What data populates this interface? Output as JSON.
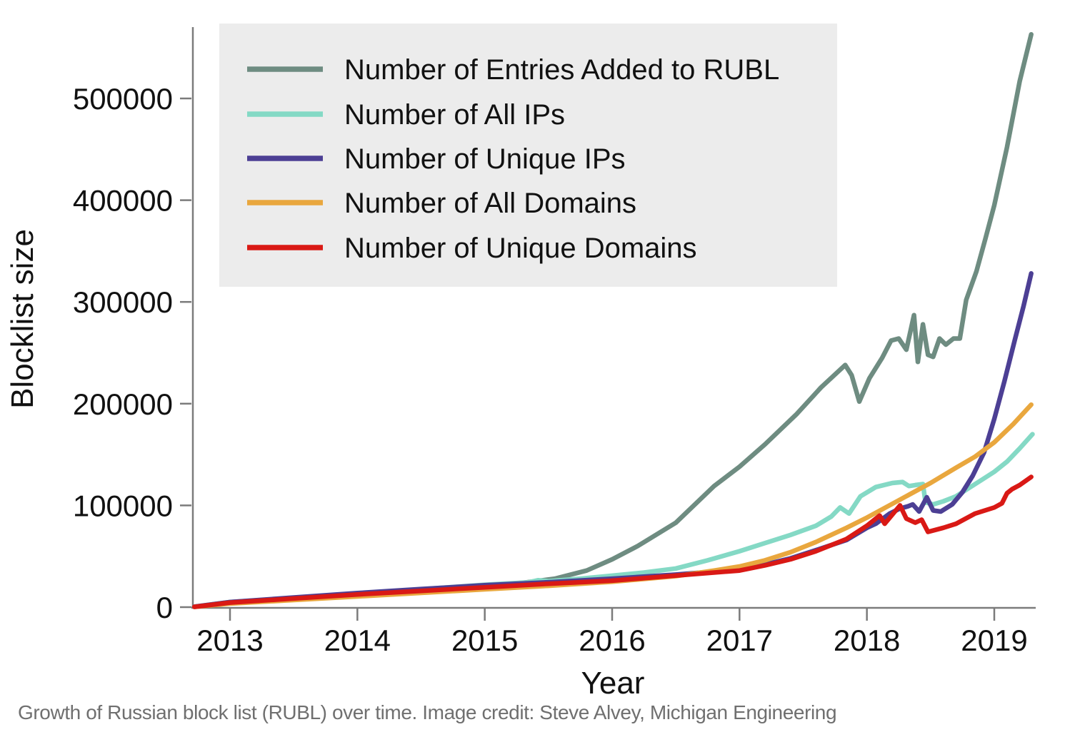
{
  "figure": {
    "caption": "Growth of Russian block list (RUBL) over time. Image credit: Steve Alvey, Michigan Engineering"
  },
  "chart_data": {
    "type": "line",
    "title": "",
    "xlabel": "Year",
    "ylabel": "Blocklist size",
    "xlim": [
      2012.7,
      2019.35
    ],
    "ylim": [
      0,
      570000
    ],
    "grid": false,
    "legend_position": "top-left",
    "legend_bg": "#ececec",
    "axis_color": "#7b7b7b",
    "x_ticks": [
      2013,
      2014,
      2015,
      2016,
      2017,
      2018,
      2019
    ],
    "y_ticks": [
      0,
      100000,
      200000,
      300000,
      400000,
      500000
    ],
    "series": [
      {
        "name": "Number of Entries Added to RUBL",
        "color": "#6e8c81",
        "points": [
          [
            2012.72,
            500
          ],
          [
            2013,
            4000
          ],
          [
            2013.5,
            8000
          ],
          [
            2014,
            12000
          ],
          [
            2014.5,
            16500
          ],
          [
            2015,
            21000
          ],
          [
            2015.3,
            24000
          ],
          [
            2015.55,
            28000
          ],
          [
            2015.8,
            36000
          ],
          [
            2016,
            47000
          ],
          [
            2016.2,
            60000
          ],
          [
            2016.5,
            83000
          ],
          [
            2016.8,
            119000
          ],
          [
            2017,
            138000
          ],
          [
            2017.2,
            160000
          ],
          [
            2017.45,
            190000
          ],
          [
            2017.64,
            216000
          ],
          [
            2017.83,
            238000
          ],
          [
            2017.88,
            228000
          ],
          [
            2017.94,
            202000
          ],
          [
            2018.02,
            225000
          ],
          [
            2018.12,
            245000
          ],
          [
            2018.19,
            262000
          ],
          [
            2018.25,
            264000
          ],
          [
            2018.31,
            253000
          ],
          [
            2018.37,
            287000
          ],
          [
            2018.4,
            241000
          ],
          [
            2018.44,
            278000
          ],
          [
            2018.48,
            248000
          ],
          [
            2018.52,
            246000
          ],
          [
            2018.57,
            264000
          ],
          [
            2018.62,
            258000
          ],
          [
            2018.68,
            264000
          ],
          [
            2018.73,
            264000
          ],
          [
            2018.78,
            302000
          ],
          [
            2018.86,
            330000
          ],
          [
            2018.93,
            362000
          ],
          [
            2019,
            395000
          ],
          [
            2019.1,
            452000
          ],
          [
            2019.2,
            517000
          ],
          [
            2019.29,
            563000
          ]
        ]
      },
      {
        "name": "Number of All IPs",
        "color": "#84d9c5",
        "points": [
          [
            2012.72,
            500
          ],
          [
            2013,
            5000
          ],
          [
            2013.5,
            9000
          ],
          [
            2014,
            13500
          ],
          [
            2014.5,
            17500
          ],
          [
            2015,
            22000
          ],
          [
            2015.35,
            24500
          ],
          [
            2015.42,
            26500
          ],
          [
            2015.5,
            25500
          ],
          [
            2015.75,
            28000
          ],
          [
            2016,
            31000
          ],
          [
            2016.25,
            34000
          ],
          [
            2016.5,
            38000
          ],
          [
            2016.75,
            46000
          ],
          [
            2017,
            55000
          ],
          [
            2017.2,
            63000
          ],
          [
            2017.4,
            71000
          ],
          [
            2017.6,
            80000
          ],
          [
            2017.72,
            89000
          ],
          [
            2017.79,
            98000
          ],
          [
            2017.86,
            92000
          ],
          [
            2017.95,
            109000
          ],
          [
            2018.07,
            118000
          ],
          [
            2018.2,
            122000
          ],
          [
            2018.28,
            123000
          ],
          [
            2018.33,
            119000
          ],
          [
            2018.38,
            120000
          ],
          [
            2018.44,
            121000
          ],
          [
            2018.46,
            103000
          ],
          [
            2018.52,
            101000
          ],
          [
            2018.6,
            104000
          ],
          [
            2018.7,
            109000
          ],
          [
            2018.8,
            117000
          ],
          [
            2018.9,
            125000
          ],
          [
            2019,
            133000
          ],
          [
            2019.1,
            143000
          ],
          [
            2019.2,
            156000
          ],
          [
            2019.3,
            170000
          ]
        ]
      },
      {
        "name": "Number of Unique IPs",
        "color": "#4c3f94",
        "points": [
          [
            2012.72,
            500
          ],
          [
            2013,
            5000
          ],
          [
            2013.5,
            9500
          ],
          [
            2014,
            13800
          ],
          [
            2014.5,
            17800
          ],
          [
            2015,
            21500
          ],
          [
            2015.5,
            24500
          ],
          [
            2016,
            28000
          ],
          [
            2016.5,
            32000
          ],
          [
            2017,
            37000
          ],
          [
            2017.2,
            42000
          ],
          [
            2017.4,
            48000
          ],
          [
            2017.6,
            56000
          ],
          [
            2017.84,
            66000
          ],
          [
            2018,
            78000
          ],
          [
            2018.07,
            82000
          ],
          [
            2018.18,
            92000
          ],
          [
            2018.26,
            97000
          ],
          [
            2018.32,
            99000
          ],
          [
            2018.36,
            101000
          ],
          [
            2018.41,
            94000
          ],
          [
            2018.47,
            108000
          ],
          [
            2018.52,
            95000
          ],
          [
            2018.58,
            94000
          ],
          [
            2018.67,
            101000
          ],
          [
            2018.75,
            113000
          ],
          [
            2018.83,
            129000
          ],
          [
            2018.92,
            152000
          ],
          [
            2019,
            185000
          ],
          [
            2019.08,
            222000
          ],
          [
            2019.16,
            262000
          ],
          [
            2019.23,
            296000
          ],
          [
            2019.29,
            328000
          ]
        ]
      },
      {
        "name": "Number of All Domains",
        "color": "#e9a73e",
        "points": [
          [
            2012.72,
            300
          ],
          [
            2013,
            3500
          ],
          [
            2013.5,
            7000
          ],
          [
            2014,
            10500
          ],
          [
            2014.5,
            14000
          ],
          [
            2015,
            17500
          ],
          [
            2015.5,
            21000
          ],
          [
            2016,
            25000
          ],
          [
            2016.5,
            30500
          ],
          [
            2016.8,
            36000
          ],
          [
            2017,
            40000
          ],
          [
            2017.2,
            46000
          ],
          [
            2017.4,
            54000
          ],
          [
            2017.6,
            64000
          ],
          [
            2017.84,
            78000
          ],
          [
            2018,
            88000
          ],
          [
            2018.25,
            105000
          ],
          [
            2018.5,
            122000
          ],
          [
            2018.7,
            137000
          ],
          [
            2018.85,
            148000
          ],
          [
            2019,
            162000
          ],
          [
            2019.15,
            180000
          ],
          [
            2019.29,
            199000
          ]
        ]
      },
      {
        "name": "Number of Unique Domains",
        "color": "#d91915",
        "points": [
          [
            2012.72,
            300
          ],
          [
            2013,
            4500
          ],
          [
            2013.5,
            8500
          ],
          [
            2014,
            12500
          ],
          [
            2014.5,
            16000
          ],
          [
            2015,
            19500
          ],
          [
            2015.5,
            23000
          ],
          [
            2016,
            26000
          ],
          [
            2016.5,
            31000
          ],
          [
            2017,
            36000
          ],
          [
            2017.2,
            41000
          ],
          [
            2017.4,
            47000
          ],
          [
            2017.6,
            55000
          ],
          [
            2017.84,
            67000
          ],
          [
            2018,
            80000
          ],
          [
            2018.1,
            90000
          ],
          [
            2018.14,
            82000
          ],
          [
            2018.26,
            100000
          ],
          [
            2018.31,
            87000
          ],
          [
            2018.38,
            83000
          ],
          [
            2018.43,
            86000
          ],
          [
            2018.48,
            74000
          ],
          [
            2018.6,
            78000
          ],
          [
            2018.7,
            82000
          ],
          [
            2018.85,
            92000
          ],
          [
            2019,
            98000
          ],
          [
            2019.06,
            102000
          ],
          [
            2019.1,
            112000
          ],
          [
            2019.14,
            116000
          ],
          [
            2019.2,
            120000
          ],
          [
            2019.29,
            128000
          ]
        ]
      }
    ]
  }
}
